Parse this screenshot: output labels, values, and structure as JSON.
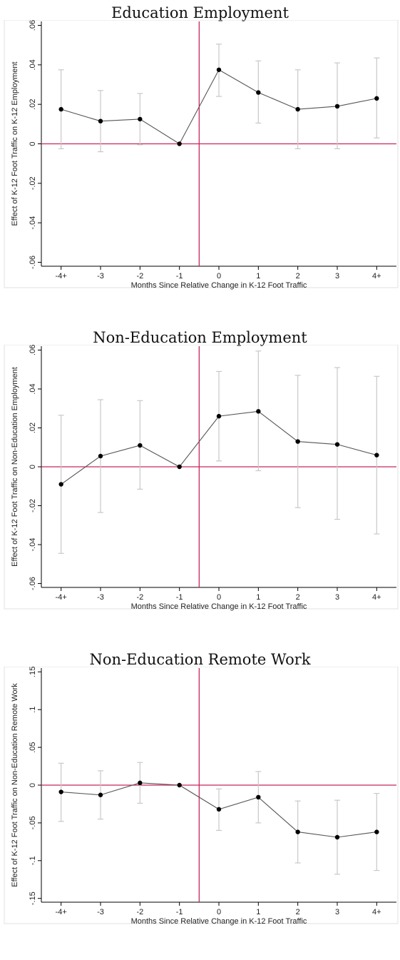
{
  "colors": {
    "reference": "#c8285a",
    "ci": "#c8c8c8",
    "line": "#555555",
    "point": "#000000"
  },
  "chart_data": [
    {
      "type": "line",
      "title": "Education Employment",
      "xlabel": "Months Since Relative Change in K-12 Foot Traffic",
      "ylabel": "Effect of K-12 Foot Traffic on K-12 Employment",
      "categories": [
        "-4+",
        "-3",
        "-2",
        "-1",
        "0",
        "1",
        "2",
        "3",
        "4+"
      ],
      "ylim": [
        -0.062,
        0.062
      ],
      "yticks": [
        0.06,
        0.04,
        0.02,
        0,
        -0.02,
        -0.04,
        -0.06
      ],
      "ytick_labels": [
        ".06",
        ".04",
        ".02",
        "0",
        "-.02",
        "-.04",
        "-.06"
      ],
      "reference_x": "between -1 and 0",
      "series": [
        {
          "values": [
            0.0175,
            0.0115,
            0.0125,
            0.0,
            0.0375,
            0.026,
            0.0175,
            0.019,
            0.023
          ],
          "ci_low": [
            -0.0025,
            -0.004,
            -0.0005,
            0.0,
            0.024,
            0.0105,
            -0.0025,
            -0.0025,
            0.003
          ],
          "ci_high": [
            0.0375,
            0.027,
            0.0255,
            0.0,
            0.0505,
            0.042,
            0.0375,
            0.041,
            0.0435
          ]
        }
      ]
    },
    {
      "type": "line",
      "title": "Non-Education Employment",
      "xlabel": "Months Since Relative Change in K-12 Foot Traffic",
      "ylabel": "Effect of K-12 Foot Traffic on Non-Education Employment",
      "categories": [
        "-4+",
        "-3",
        "-2",
        "-1",
        "0",
        "1",
        "2",
        "3",
        "4+"
      ],
      "ylim": [
        -0.062,
        0.062
      ],
      "yticks": [
        0.06,
        0.04,
        0.02,
        0,
        -0.02,
        -0.04,
        -0.06
      ],
      "ytick_labels": [
        ".06",
        ".04",
        ".02",
        "0",
        "-.02",
        "-.04",
        "-.06"
      ],
      "reference_x": "between -1 and 0",
      "series": [
        {
          "values": [
            -0.009,
            0.0055,
            0.011,
            0.0,
            0.026,
            0.0285,
            0.013,
            0.0115,
            0.006
          ],
          "ci_low": [
            -0.0445,
            -0.0235,
            -0.0115,
            0.0,
            0.003,
            -0.002,
            -0.021,
            -0.027,
            -0.0345
          ],
          "ci_high": [
            0.0265,
            0.0345,
            0.034,
            0.0,
            0.049,
            0.0595,
            0.047,
            0.051,
            0.0465
          ]
        }
      ]
    },
    {
      "type": "line",
      "title": "Non-Education Remote Work",
      "xlabel": "Months Since Relative Change in K-12 Foot Traffic",
      "ylabel": "Effect of K-12 Foot Traffic on Non-Education Remote Work",
      "categories": [
        "-4+",
        "-3",
        "-2",
        "-1",
        "0",
        "1",
        "2",
        "3",
        "4+"
      ],
      "ylim": [
        -0.155,
        0.155
      ],
      "yticks": [
        0.15,
        0.1,
        0.05,
        0,
        -0.05,
        -0.1,
        -0.15
      ],
      "ytick_labels": [
        ".15",
        ".1",
        ".05",
        "0",
        "-.05",
        "-.1",
        "-.15"
      ],
      "reference_x": "between -1 and 0",
      "series": [
        {
          "values": [
            -0.009,
            -0.013,
            0.003,
            0.0,
            -0.032,
            -0.016,
            -0.062,
            -0.069,
            -0.062
          ],
          "ci_low": [
            -0.048,
            -0.045,
            -0.024,
            0.0,
            -0.06,
            -0.05,
            -0.103,
            -0.118,
            -0.113
          ],
          "ci_high": [
            0.029,
            0.019,
            0.03,
            0.0,
            -0.005,
            0.018,
            -0.021,
            -0.02,
            -0.011
          ]
        }
      ]
    }
  ]
}
